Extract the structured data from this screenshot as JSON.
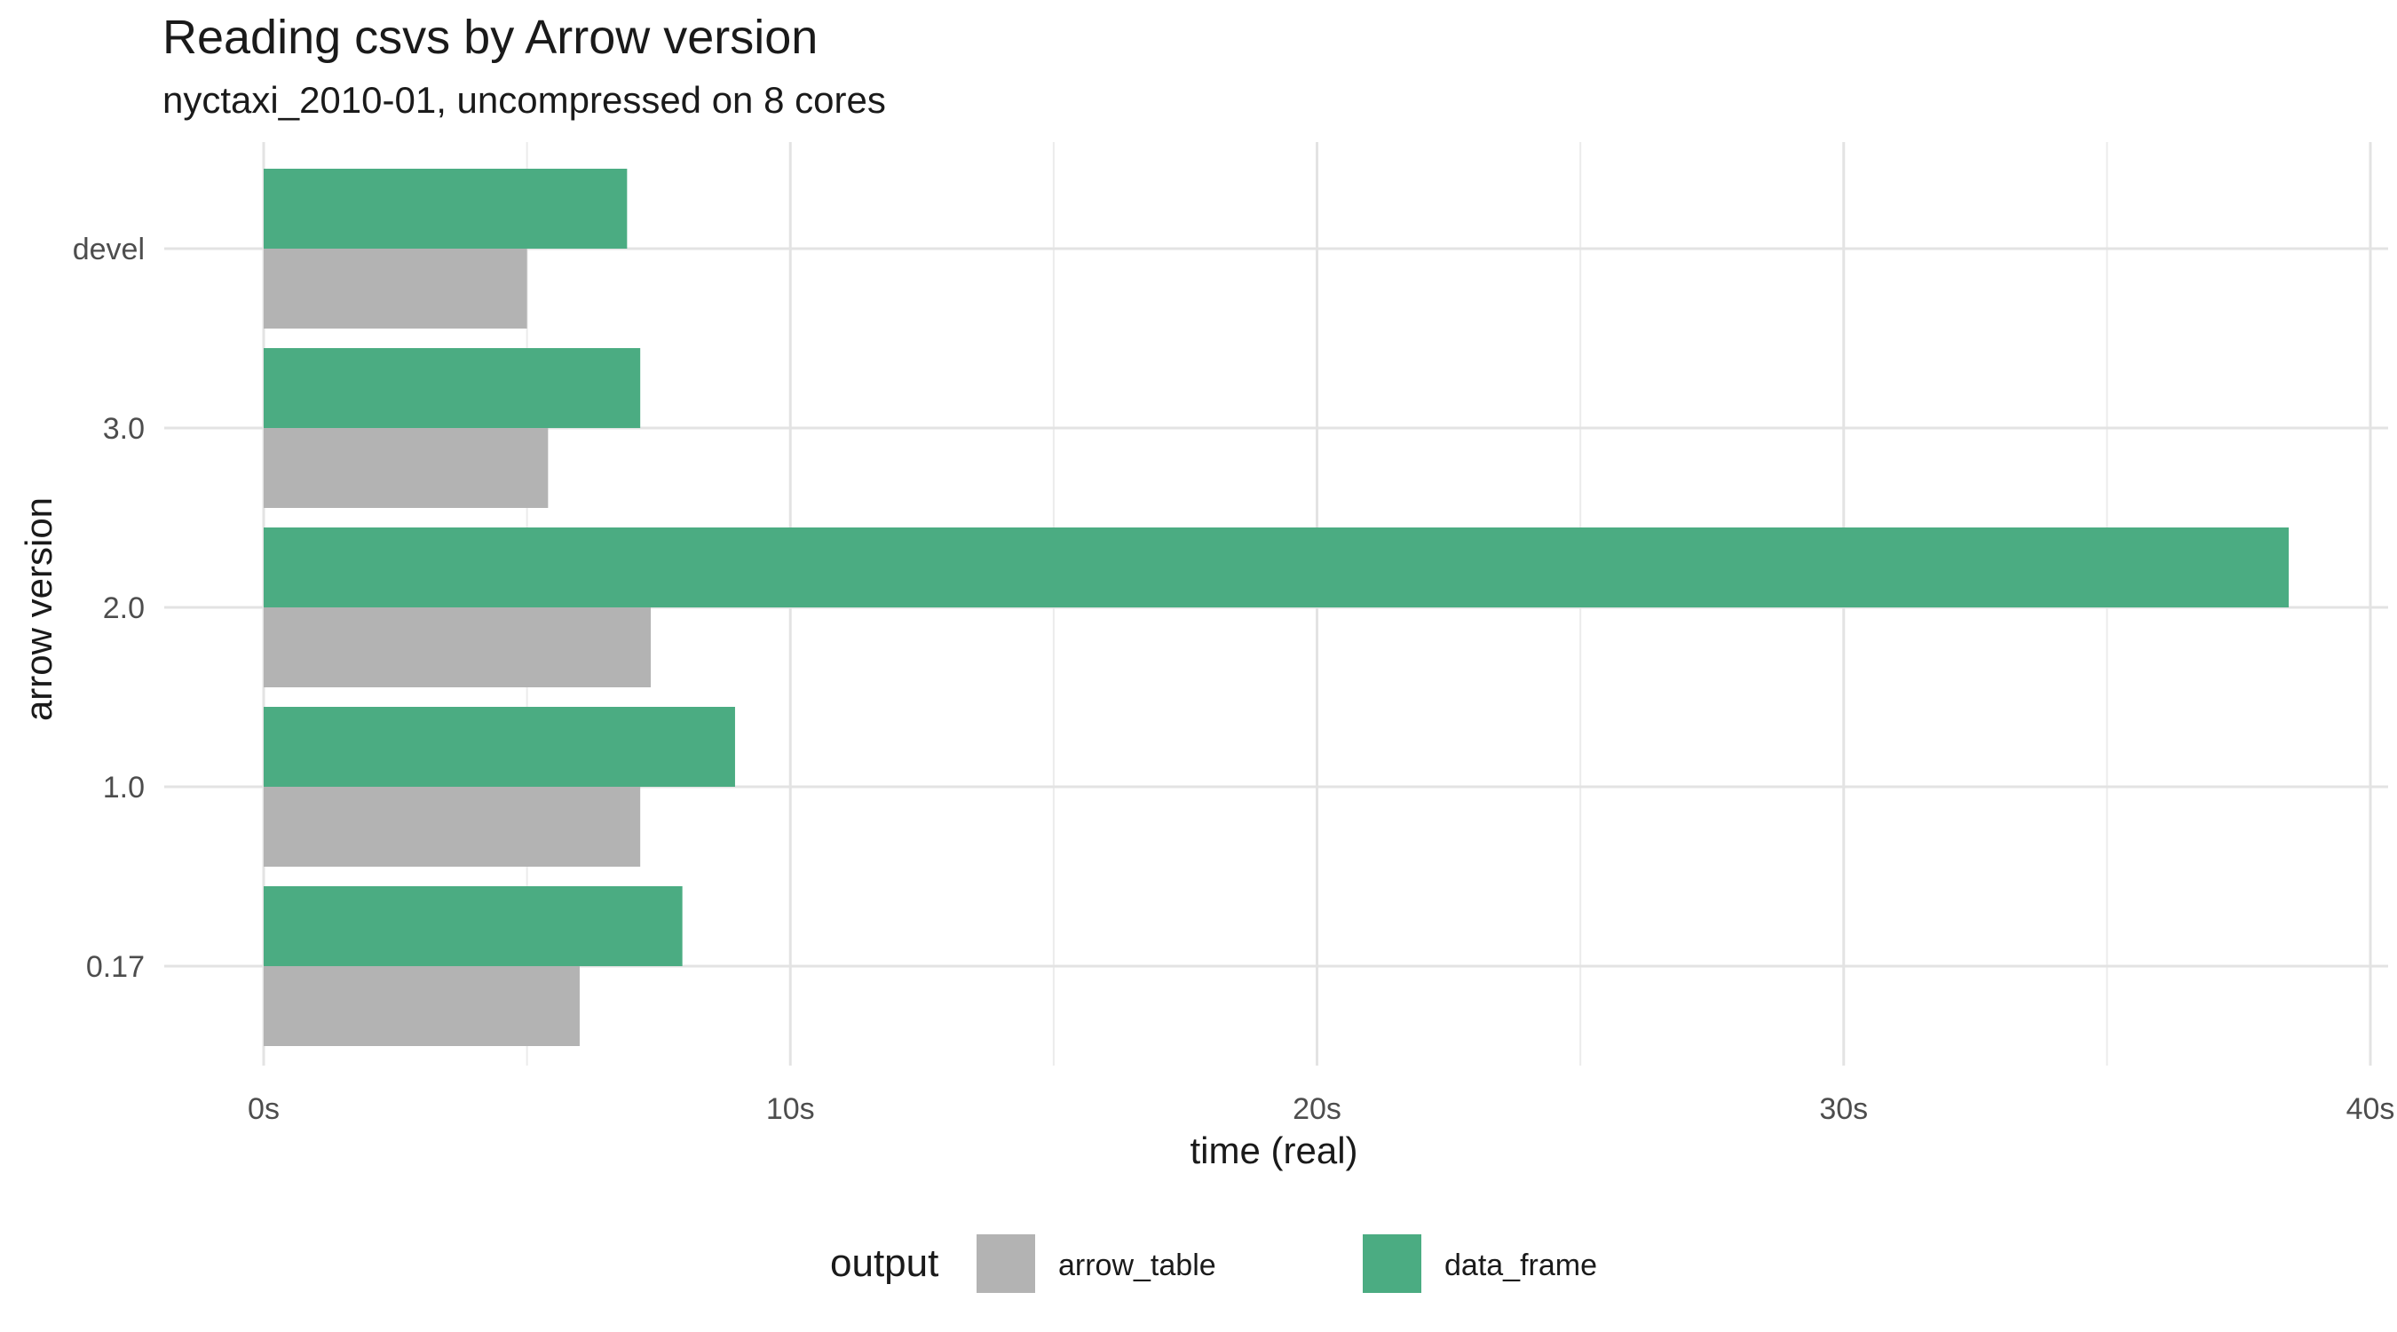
{
  "chart_data": {
    "type": "bar",
    "orientation": "horizontal",
    "title": "Reading csvs by Arrow version",
    "subtitle": "nyctaxi_2010-01, uncompressed on 8 cores",
    "xlabel": "time (real)",
    "ylabel": "arrow version",
    "categories": [
      "devel",
      "3.0",
      "2.0",
      "1.0",
      "0.17"
    ],
    "series": [
      {
        "name": "arrow_table",
        "color": "#b3b3b3",
        "values": [
          5.0,
          5.4,
          7.35,
          7.15,
          6.0
        ]
      },
      {
        "name": "data_frame",
        "color": "#4bac82",
        "values": [
          6.9,
          7.15,
          38.45,
          8.95,
          7.95
        ]
      }
    ],
    "xlim": [
      0,
      40
    ],
    "x_ticks": [
      0,
      10,
      20,
      30,
      40
    ],
    "x_tick_labels": [
      "0s",
      "10s",
      "20s",
      "30s",
      "40s"
    ],
    "grid": true,
    "legend": {
      "title": "output",
      "position": "bottom",
      "entries": [
        "arrow_table",
        "data_frame"
      ]
    }
  }
}
